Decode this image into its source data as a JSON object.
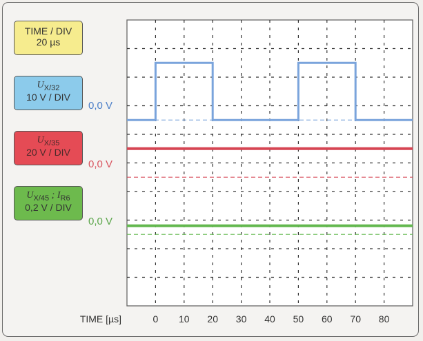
{
  "timebase": {
    "title": "TIME / DIV",
    "value": "20 µs"
  },
  "channels": [
    {
      "symbol": "U",
      "sub": "X/32",
      "scale": "10 V / DIV",
      "zero_label": "0,0 V",
      "color": "#4c7fc8",
      "trace_color": "#7aa4dc"
    },
    {
      "symbol": "U",
      "sub": "X/35",
      "scale": "20 V / DIV",
      "zero_label": "0,0 V",
      "color": "#d9545f",
      "trace_color": "#d64553"
    },
    {
      "symbol": "U",
      "sub": "X/45",
      "symbol2": "I",
      "sub2": "R6",
      "separator": " ; ",
      "scale": "0,2 V / DIV",
      "zero_label": "0,0 V",
      "color": "#5aa54a",
      "trace_color": "#63b84f"
    }
  ],
  "chart_data": {
    "type": "line",
    "xlabel": "TIME [µs]",
    "x_ticks": [
      0,
      10,
      20,
      30,
      40,
      50,
      60,
      70,
      80
    ],
    "xlim": [
      -10,
      90
    ],
    "grid": true,
    "series": [
      {
        "x": [
          -10,
          0,
          0,
          20,
          20,
          50,
          50,
          70,
          70,
          90
        ],
        "y": [
          0,
          0,
          2,
          2,
          0,
          0,
          2,
          2,
          0,
          0
        ],
        "unit": "div",
        "zero_div": 6.5
      },
      {
        "x": [
          -10,
          90
        ],
        "y": [
          1,
          1
        ],
        "unit": "div",
        "zero_div": 4.5
      },
      {
        "x": [
          -10,
          90
        ],
        "y": [
          0.3,
          0.3
        ],
        "unit": "div",
        "zero_div": 2.5
      }
    ],
    "grid_divisions": {
      "x": 10,
      "y": 10
    }
  }
}
